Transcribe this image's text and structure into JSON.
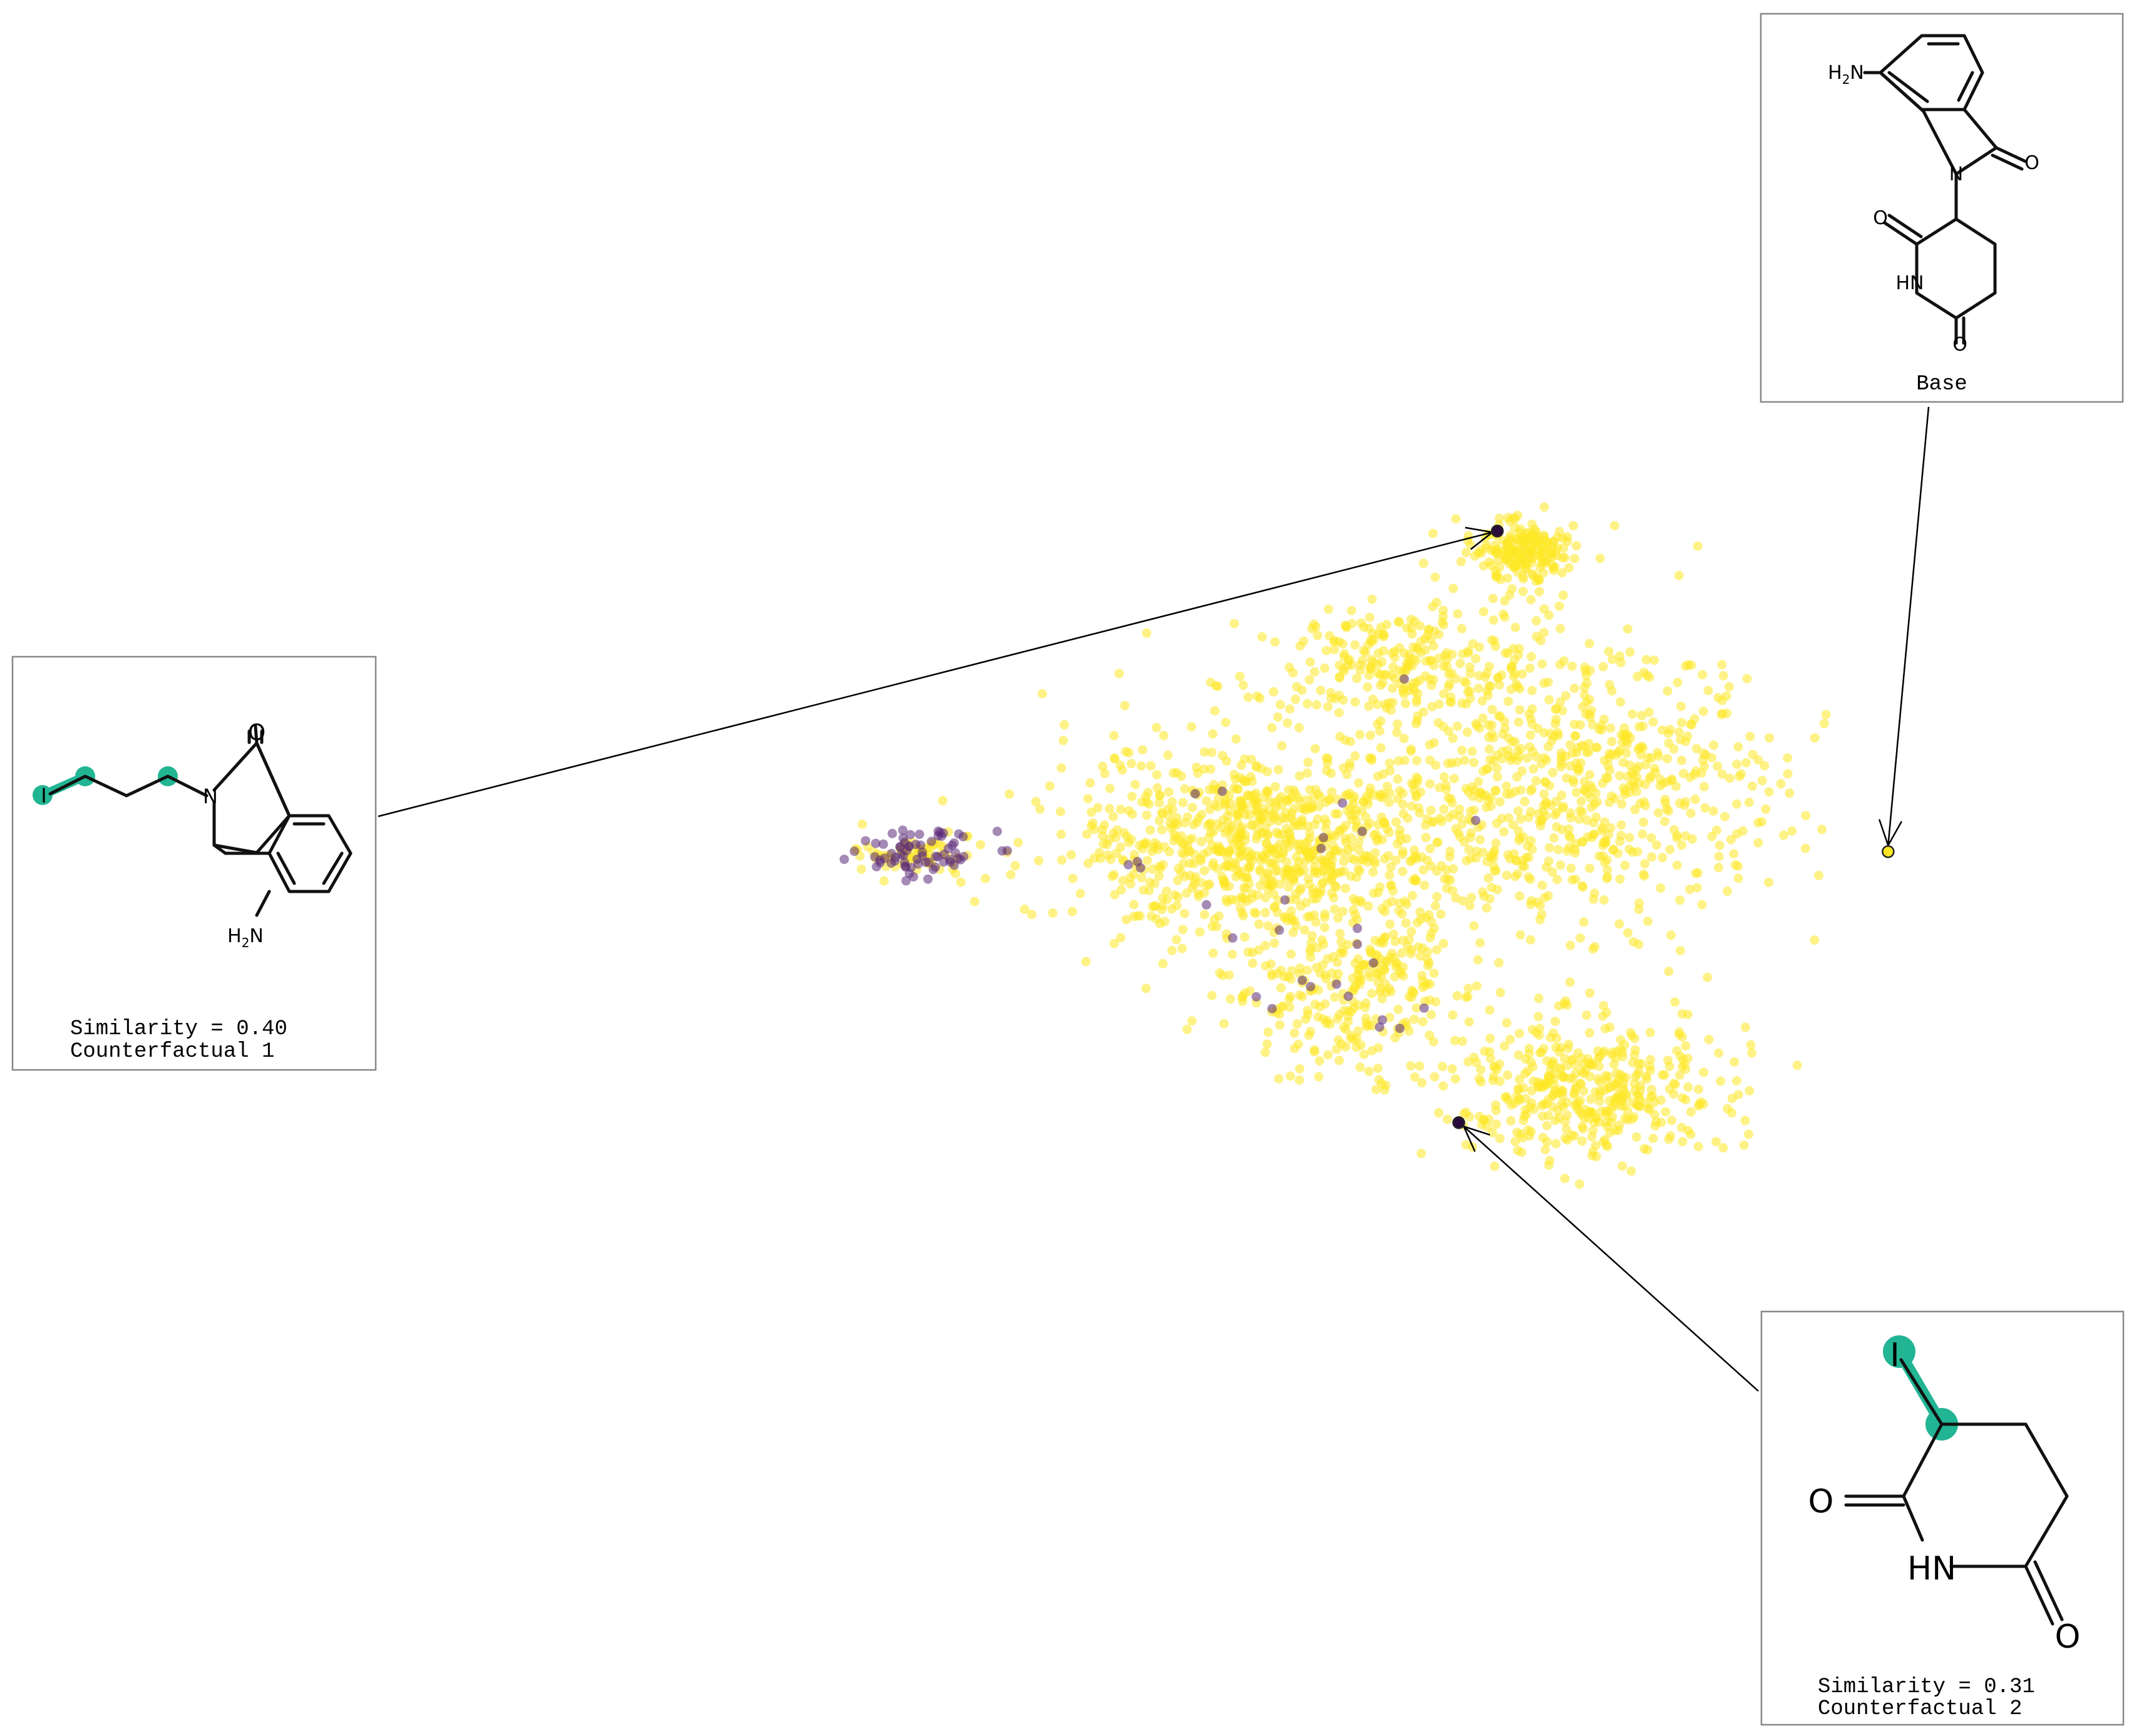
{
  "chart_data": {
    "type": "scatter",
    "title": "",
    "xlabel": "",
    "ylabel": "",
    "xlim": [
      0,
      100
    ],
    "ylim": [
      0,
      100
    ],
    "grid": false,
    "legend": "none",
    "colors": {
      "majority": "#fde725",
      "minority": "#5b2a78",
      "highlight_dark": "#2a0a3c",
      "highlight_base": "#fde725",
      "highlight_atoms": "#22b594"
    },
    "clusters": [
      {
        "name": "left-tip",
        "cx": 9,
        "cy": 49,
        "sx": 3.5,
        "sy": 1.4,
        "n": 140,
        "minority_frac": 0.45
      },
      {
        "name": "top-peak",
        "cx": 70,
        "cy": 86,
        "sx": 2.5,
        "sy": 2.0,
        "n": 200,
        "minority_frac": 0.0
      },
      {
        "name": "upper-mid",
        "cx": 58,
        "cy": 72,
        "sx": 9,
        "sy": 4,
        "n": 280,
        "minority_frac": 0.01
      },
      {
        "name": "center",
        "cx": 45,
        "cy": 50,
        "sx": 10,
        "sy": 6,
        "n": 900,
        "minority_frac": 0.02
      },
      {
        "name": "right-body",
        "cx": 76,
        "cy": 57,
        "sx": 10,
        "sy": 9,
        "n": 650,
        "minority_frac": 0.0
      },
      {
        "name": "bottom-right",
        "cx": 77,
        "cy": 20,
        "sx": 7,
        "sy": 4,
        "n": 420,
        "minority_frac": 0.0
      },
      {
        "name": "lower-mid",
        "cx": 53,
        "cy": 32,
        "sx": 6,
        "sy": 5,
        "n": 300,
        "minority_frac": 0.03
      }
    ],
    "highlights": [
      {
        "id": "counterfactual-1",
        "x": 67.8,
        "y": 88.6,
        "color": "dark"
      },
      {
        "id": "counterfactual-2",
        "x": 63.9,
        "y": 15.9,
        "color": "dark"
      },
      {
        "id": "base",
        "x": 107.3,
        "y": 49.2,
        "color": "base"
      }
    ],
    "annotations": [
      {
        "id": "base",
        "lines": [
          "Base"
        ]
      },
      {
        "id": "cf1",
        "lines": [
          "Similarity = 0.40",
          "Counterfactual 1"
        ]
      },
      {
        "id": "cf2",
        "lines": [
          "Similarity = 0.31",
          "Counterfactual 2"
        ]
      }
    ],
    "atom_labels": {
      "amine": "H2N",
      "amine_main": "H",
      "amine_sub": "2",
      "amine_n": "N",
      "nitrogen": "N",
      "oxygen": "O",
      "imide": "HN",
      "iodine": "I"
    }
  }
}
